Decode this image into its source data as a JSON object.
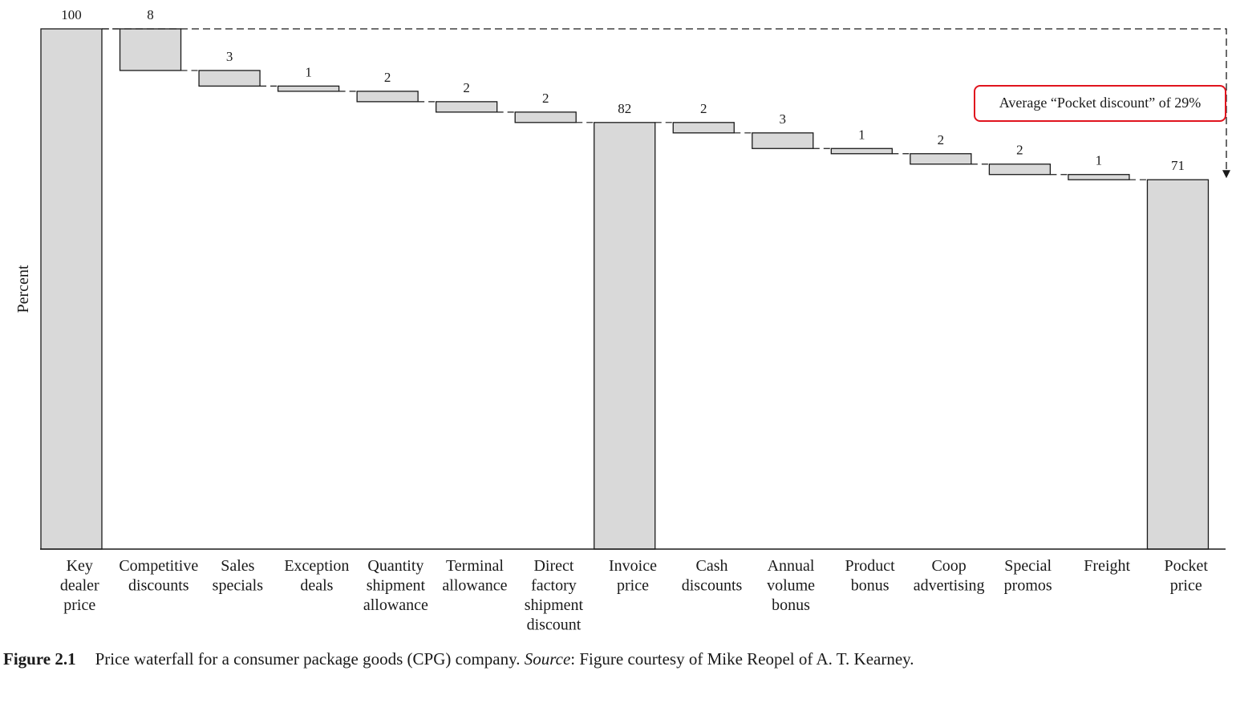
{
  "chart_data": {
    "type": "bar",
    "subtype": "waterfall",
    "ylabel": "Percent",
    "xlabel": "",
    "title": "",
    "ylim": [
      0,
      100
    ],
    "categories": [
      [
        "Key",
        "dealer",
        "price"
      ],
      [
        "Competitive",
        "discounts"
      ],
      [
        "Sales",
        "specials"
      ],
      [
        "Exception",
        "deals"
      ],
      [
        "Quantity",
        "shipment",
        "allowance"
      ],
      [
        "Terminal",
        "allowance"
      ],
      [
        "Direct",
        "factory",
        "shipment",
        "discount"
      ],
      [
        "Invoice",
        "price"
      ],
      [
        "Cash",
        "discounts"
      ],
      [
        "Annual",
        "volume",
        "bonus"
      ],
      [
        "Product",
        "bonus"
      ],
      [
        "Coop",
        "advertising"
      ],
      [
        "Special",
        "promos"
      ],
      [
        "Freight"
      ],
      [
        "Pocket",
        "price"
      ]
    ],
    "bars": [
      {
        "kind": "total",
        "value": 100,
        "label": "100"
      },
      {
        "kind": "decrement",
        "value": 8,
        "label": "8"
      },
      {
        "kind": "decrement",
        "value": 3,
        "label": "3"
      },
      {
        "kind": "decrement",
        "value": 1,
        "label": "1"
      },
      {
        "kind": "decrement",
        "value": 2,
        "label": "2"
      },
      {
        "kind": "decrement",
        "value": 2,
        "label": "2"
      },
      {
        "kind": "decrement",
        "value": 2,
        "label": "2"
      },
      {
        "kind": "total",
        "value": 82,
        "label": "82"
      },
      {
        "kind": "decrement",
        "value": 2,
        "label": "2"
      },
      {
        "kind": "decrement",
        "value": 3,
        "label": "3"
      },
      {
        "kind": "decrement",
        "value": 1,
        "label": "1"
      },
      {
        "kind": "decrement",
        "value": 2,
        "label": "2"
      },
      {
        "kind": "decrement",
        "value": 2,
        "label": "2"
      },
      {
        "kind": "decrement",
        "value": 1,
        "label": "1"
      },
      {
        "kind": "total",
        "value": 71,
        "label": "71"
      }
    ],
    "annotation": {
      "text": "Average “Pocket discount” of 29%",
      "border_color": "#e0141e"
    },
    "grid": false,
    "bar_fill": "#d9d9d9",
    "bar_stroke": "#1a1a1a"
  },
  "caption": {
    "figure_number": "Figure 2.1",
    "text": "Price waterfall for a consumer package goods (CPG) company.",
    "source_label": "Source",
    "source_text": ": Figure courtesy of Mike Reopel of A. T. Kearney."
  }
}
